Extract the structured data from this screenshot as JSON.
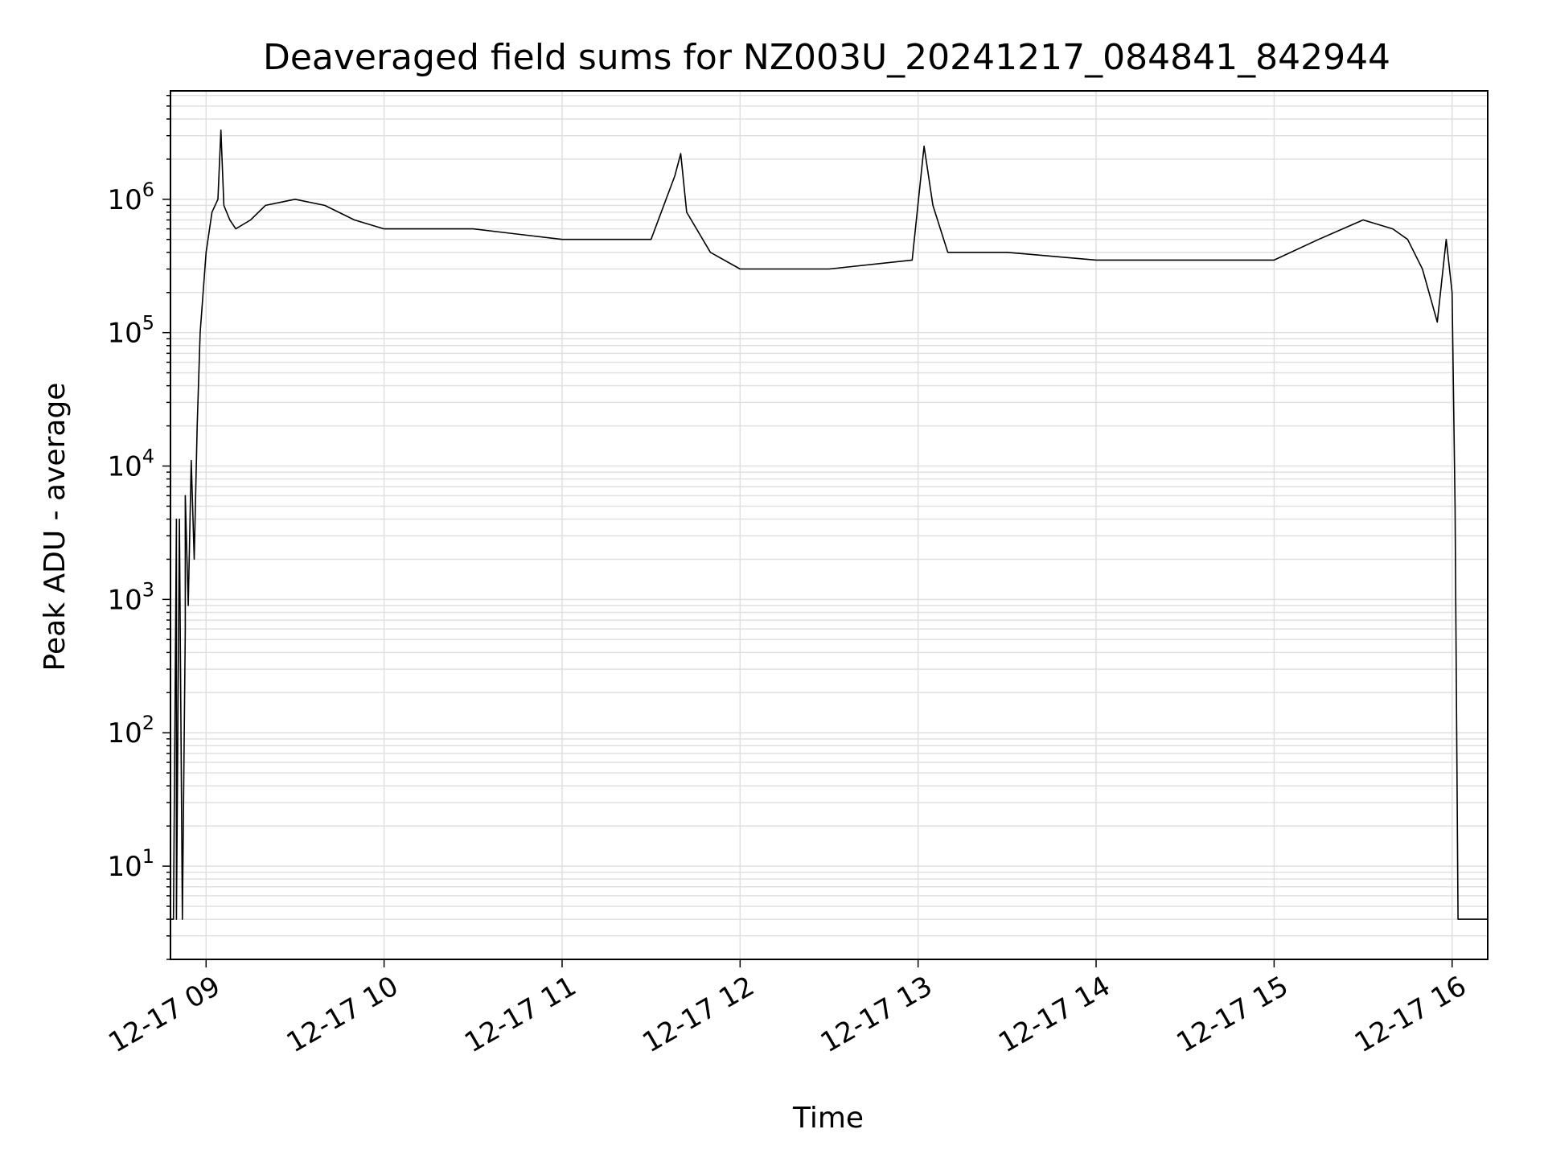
{
  "chart_data": {
    "type": "line",
    "title": "Deaveraged field sums for NZ003U_20241217_084841_842944",
    "xlabel": "Time",
    "ylabel": "Peak ADU - average",
    "yscale": "log",
    "xlim": [
      "2024-12-17 08:48",
      "2024-12-17 16:12"
    ],
    "ylim": [
      2,
      6500000
    ],
    "grid": true,
    "line_color": "#000000",
    "grid_color": "#e0e0e0",
    "x_ticks": [
      {
        "value": "2024-12-17 09:00",
        "label": "12-17 09"
      },
      {
        "value": "2024-12-17 10:00",
        "label": "12-17 10"
      },
      {
        "value": "2024-12-17 11:00",
        "label": "12-17 11"
      },
      {
        "value": "2024-12-17 12:00",
        "label": "12-17 12"
      },
      {
        "value": "2024-12-17 13:00",
        "label": "12-17 13"
      },
      {
        "value": "2024-12-17 14:00",
        "label": "12-17 14"
      },
      {
        "value": "2024-12-17 15:00",
        "label": "12-17 15"
      },
      {
        "value": "2024-12-17 16:00",
        "label": "12-17 16"
      }
    ],
    "y_ticks": [
      {
        "value": 10,
        "base": "10",
        "exp": "1"
      },
      {
        "value": 100,
        "base": "10",
        "exp": "2"
      },
      {
        "value": 1000,
        "base": "10",
        "exp": "3"
      },
      {
        "value": 10000,
        "base": "10",
        "exp": "4"
      },
      {
        "value": 100000,
        "base": "10",
        "exp": "5"
      },
      {
        "value": 1000000,
        "base": "10",
        "exp": "6"
      }
    ],
    "series": [
      {
        "x": [
          "2024-12-17 08:48",
          "2024-12-17 08:49",
          "2024-12-17 08:50",
          "2024-12-17 08:50",
          "2024-12-17 08:51",
          "2024-12-17 08:52",
          "2024-12-17 08:53",
          "2024-12-17 08:53",
          "2024-12-17 08:54",
          "2024-12-17 08:55",
          "2024-12-17 08:56",
          "2024-12-17 08:57",
          "2024-12-17 08:58",
          "2024-12-17 08:59",
          "2024-12-17 09:00",
          "2024-12-17 09:02",
          "2024-12-17 09:04",
          "2024-12-17 09:05",
          "2024-12-17 09:06",
          "2024-12-17 09:08",
          "2024-12-17 09:10",
          "2024-12-17 09:15",
          "2024-12-17 09:20",
          "2024-12-17 09:30",
          "2024-12-17 09:40",
          "2024-12-17 09:50",
          "2024-12-17 10:00",
          "2024-12-17 10:30",
          "2024-12-17 11:00",
          "2024-12-17 11:30",
          "2024-12-17 11:38",
          "2024-12-17 11:40",
          "2024-12-17 11:42",
          "2024-12-17 11:50",
          "2024-12-17 12:00",
          "2024-12-17 12:30",
          "2024-12-17 12:58",
          "2024-12-17 13:02",
          "2024-12-17 13:05",
          "2024-12-17 13:10",
          "2024-12-17 13:30",
          "2024-12-17 14:00",
          "2024-12-17 14:30",
          "2024-12-17 15:00",
          "2024-12-17 15:15",
          "2024-12-17 15:30",
          "2024-12-17 15:40",
          "2024-12-17 15:45",
          "2024-12-17 15:50",
          "2024-12-17 15:55",
          "2024-12-17 15:58",
          "2024-12-17 16:00",
          "2024-12-17 16:01",
          "2024-12-17 16:02",
          "2024-12-17 16:12"
        ],
        "y": [
          4,
          4,
          4000,
          4,
          4000,
          4,
          600,
          6000,
          900,
          11000,
          2000,
          20000,
          100000,
          200000,
          400000,
          800000,
          1000000,
          3300000,
          900000,
          700000,
          600000,
          700000,
          900000,
          1000000,
          900000,
          700000,
          600000,
          600000,
          500000,
          500000,
          1500000,
          2200000,
          800000,
          400000,
          300000,
          300000,
          350000,
          2500000,
          900000,
          400000,
          400000,
          350000,
          350000,
          350000,
          500000,
          700000,
          600000,
          500000,
          300000,
          120000,
          500000,
          200000,
          5000,
          4,
          4
        ]
      }
    ]
  }
}
